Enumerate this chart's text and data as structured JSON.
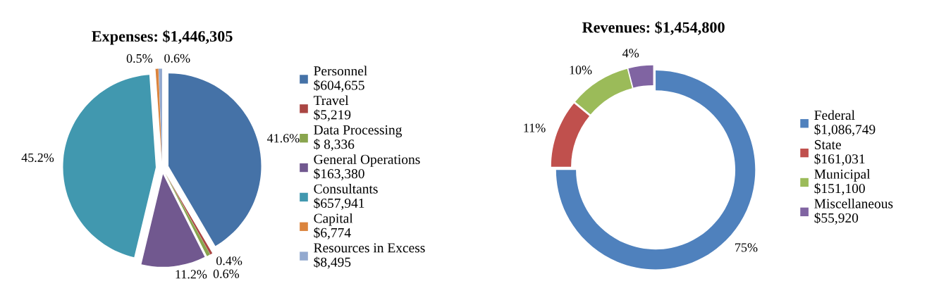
{
  "chart_data": [
    {
      "type": "pie",
      "title": "Expenses: $1,446,305",
      "categories": [
        "Personnel\n$604,655",
        "Travel\n$5,219",
        "Data Processing\n$ 8,336",
        "General Operations\n$163,380",
        "Consultants\n$657,941",
        "Capital\n$6,774",
        "Resources in Excess\n$8,495"
      ],
      "values": [
        41.6,
        0.4,
        0.6,
        11.2,
        45.2,
        0.5,
        0.6
      ],
      "value_labels": [
        "41.6%",
        "0.4%",
        "0.6%",
        "11.2%",
        "45.2%",
        "0.5%",
        "0.6%"
      ],
      "colors": [
        "#4572a7",
        "#aa4643",
        "#89a54e",
        "#71588f",
        "#4198af",
        "#db843d",
        "#93a9cf"
      ],
      "legend": "right"
    },
    {
      "type": "donut",
      "title": "Revenues: $1,454,800",
      "categories": [
        "Federal\n$1,086,749",
        "State\n$161,031",
        "Municipal\n$151,100",
        "Miscellaneous\n$55,920"
      ],
      "values": [
        75,
        11,
        10,
        4
      ],
      "value_labels": [
        "75%",
        "11%",
        "10%",
        "4%"
      ],
      "colors": [
        "#4f81bd",
        "#c0504d",
        "#9bbb59",
        "#8064a2"
      ],
      "legend": "right"
    }
  ]
}
